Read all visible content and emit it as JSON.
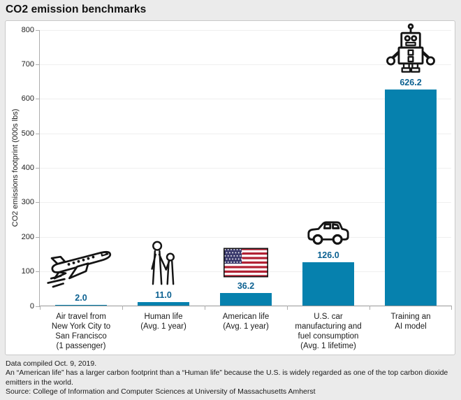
{
  "title": "CO2 emission benchmarks",
  "chart_data": {
    "type": "bar",
    "title": "CO2 emission benchmarks",
    "categories": [
      "Air travel from\nNew York City to\nSan Francisco\n(1 passenger)",
      "Human life\n(Avg. 1 year)",
      "American life\n(Avg. 1 year)",
      "U.S. car\nmanufacturing and\nfuel consumption\n(Avg. 1 lifetime)",
      "Training an\nAI model"
    ],
    "values": [
      2.0,
      11.0,
      36.2,
      126.0,
      626.2
    ],
    "value_labels": [
      "2.0",
      "11.0",
      "36.2",
      "126.0",
      "626.2"
    ],
    "ids": [
      "air-travel",
      "human-life",
      "american-life",
      "us-car",
      "training-ai-model"
    ],
    "icons": [
      "airplane-icon",
      "adult-child-icon",
      "us-flag-icon",
      "car-icon",
      "robot-icon"
    ],
    "xlabel": "",
    "ylabel": "CO2 emissions footprint (000s lbs)",
    "ylim": [
      0,
      800
    ],
    "ytick_interval": 100,
    "grid": true,
    "legend": "none",
    "bar_color": "#0681ae",
    "value_label_color": "#0c6191",
    "flag_red": "#b22234",
    "flag_blue": "#3c3b6e"
  },
  "footer": {
    "line1": "Data compiled Oct. 9, 2019.",
    "line2": "An “American life” has a larger carbon footprint than a “Human life” because the U.S. is widely regarded as one of the top carbon dioxide emitters in the world.",
    "line3": "Source: College of Information and Computer Sciences at University of Massachusetts Amherst"
  }
}
